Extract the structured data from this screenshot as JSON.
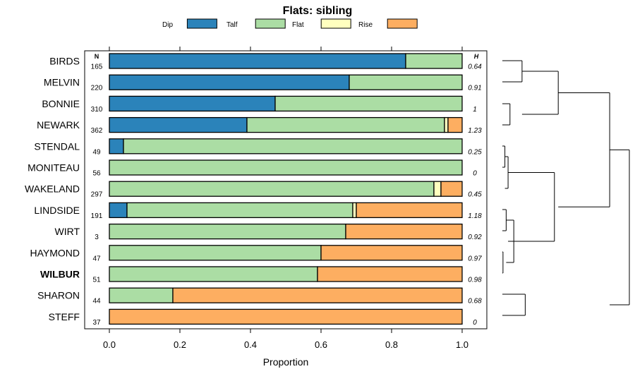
{
  "chart_data": {
    "type": "bar",
    "stacked": true,
    "orientation": "horizontal",
    "title": "Flats: sibling",
    "xlabel": "Proportion",
    "ylabel": "",
    "xlim": [
      0,
      1
    ],
    "xticks": [
      "0.0",
      "0.2",
      "0.4",
      "0.6",
      "0.8",
      "1.0"
    ],
    "xtick_values": [
      0,
      0.2,
      0.4,
      0.6,
      0.8,
      1.0
    ],
    "legend_position": "top",
    "n_header": "N",
    "h_header": "H",
    "categories": [
      "BIRDS",
      "MELVIN",
      "BONNIE",
      "NEWARK",
      "STENDAL",
      "MONITEAU",
      "WAKELAND",
      "LINDSIDE",
      "WIRT",
      "HAYMOND",
      "WILBUR",
      "SHARON",
      "STEFF"
    ],
    "highlighted_category": "WILBUR",
    "n": [
      "165",
      "220",
      "310",
      "362",
      "49",
      "56",
      "297",
      "191",
      "3",
      "47",
      "51",
      "44",
      "37"
    ],
    "h": [
      "0.64",
      "0.91",
      "1",
      "1.23",
      "0.25",
      "0",
      "0.45",
      "1.18",
      "0.92",
      "0.97",
      "0.98",
      "0.68",
      "0"
    ],
    "series": [
      {
        "name": "Dip",
        "color": "#2b83ba",
        "values": [
          0.84,
          0.68,
          0.47,
          0.39,
          0.04,
          0.0,
          0.0,
          0.05,
          0.0,
          0.0,
          0.0,
          0.0,
          0.0
        ]
      },
      {
        "name": "Talf",
        "color": "#abdda4",
        "values": [
          0.16,
          0.32,
          0.53,
          0.56,
          0.96,
          1.0,
          0.92,
          0.64,
          0.67,
          0.6,
          0.59,
          0.18,
          0.0
        ]
      },
      {
        "name": "Flat",
        "color": "#ffffbf",
        "values": [
          0.0,
          0.0,
          0.0,
          0.01,
          0.0,
          0.0,
          0.02,
          0.01,
          0.0,
          0.0,
          0.0,
          0.0,
          0.0
        ]
      },
      {
        "name": "Rise",
        "color": "#fdae61",
        "values": [
          0.0,
          0.0,
          0.0,
          0.04,
          0.0,
          0.0,
          0.06,
          0.3,
          0.33,
          0.4,
          0.41,
          0.82,
          1.0
        ]
      }
    ],
    "dendrogram": {
      "type": "hierarchical-clustering",
      "leaves": [
        "BIRDS",
        "MELVIN",
        "BONNIE",
        "NEWARK",
        "STENDAL",
        "MONITEAU",
        "WAKELAND",
        "LINDSIDE",
        "WIRT",
        "HAYMOND",
        "WILBUR",
        "SHARON",
        "STEFF"
      ],
      "merges": [
        {
          "a": 10,
          "b": 11,
          "height": 0.02
        },
        {
          "a": 5,
          "b": 6,
          "height": 0.05
        },
        {
          "a": 8,
          "b": 9,
          "height": 0.06
        },
        {
          "a": 14,
          "b": 7,
          "height": 0.08
        },
        {
          "a": 3,
          "b": 4,
          "height": 0.08
        },
        {
          "a": 16,
          "b": 15,
          "height": 0.1
        },
        {
          "a": 1,
          "b": 2,
          "height": 0.17
        },
        {
          "a": 17,
          "b": 13,
          "height": 0.11
        },
        {
          "a": 12,
          "b": 13,
          "height": 0.2
        },
        {
          "a": 19,
          "b": 16,
          "height": 0.5
        },
        {
          "a": 12,
          "b": 13,
          "height": 0.21
        },
        {
          "a": 19,
          "b": 12,
          "height": 0.54
        },
        {
          "a": 20,
          "b": 21,
          "height": 1.0
        }
      ]
    }
  }
}
